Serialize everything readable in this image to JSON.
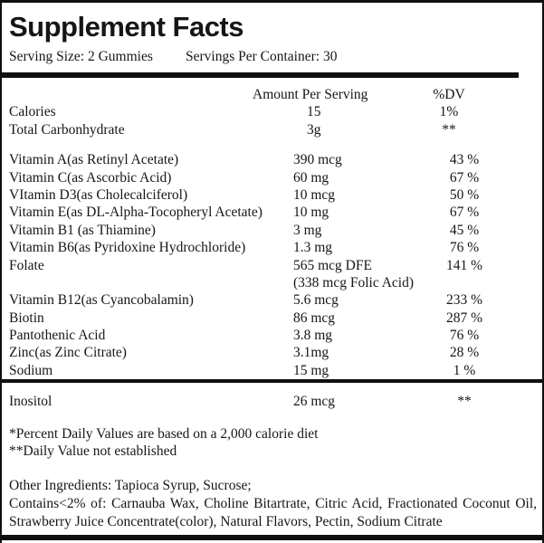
{
  "colors": {
    "ink": "#101010",
    "background": "#ffffff"
  },
  "header": {
    "title": "Supplement Facts",
    "serving_size": "Serving Size: 2 Gummies",
    "servings_per_container": "Servings Per Container: 30"
  },
  "columns": {
    "amount": "Amount Per Serving",
    "dv": "%DV"
  },
  "facts": {
    "top_rows": [
      {
        "name": "Calories",
        "amount": "15",
        "dv": "1%"
      },
      {
        "name": "Total Carbonhydrate",
        "amount": "3g",
        "dv": "**"
      }
    ],
    "nutrients": [
      {
        "name": "Vitamin A(as Retinyl Acetate)",
        "amount": "390 mcg",
        "dv": "43 %"
      },
      {
        "name": "Vitamin C(as Ascorbic Acid)",
        "amount": "60 mg",
        "dv": "67 %"
      },
      {
        "name": "VItamin D3(as Cholecalciferol)",
        "amount": "10 mcg",
        "dv": "50 %"
      },
      {
        "name": "Vitamin E(as DL-Alpha-Tocopheryl Acetate)",
        "amount": "10 mg",
        "dv": "67 %"
      },
      {
        "name": "Vitamin B1 (as Thiamine)",
        "amount": "3 mg",
        "dv": "45 %"
      },
      {
        "name": "Vitamin B6(as Pyridoxine Hydrochloride)",
        "amount": "1.3 mg",
        "dv": "76 %"
      },
      {
        "name": "Folate",
        "amount": "565 mcg DFE",
        "amount_note": "(338 mcg Folic Acid)",
        "dv": "141 %"
      },
      {
        "name": "Vitamin B12(as Cyancobalamin)",
        "amount": "5.6 mcg",
        "dv": "233 %"
      },
      {
        "name": "Biotin",
        "amount": "86 mcg",
        "dv": "287 %"
      },
      {
        "name": "Pantothenic Acid",
        "amount": "3.8 mg",
        "dv": "76 %"
      },
      {
        "name": "Zinc(as Zinc Citrate)",
        "amount": "3.1mg",
        "dv": "28 %"
      },
      {
        "name": "Sodium",
        "amount": "15 mg",
        "dv": "1 %"
      }
    ],
    "extra_row": {
      "name": "Inositol",
      "amount": "26 mcg",
      "dv": "**"
    }
  },
  "footnotes": [
    "*Percent Daily Values are based on a 2,000 calorie diet",
    "**Daily Value not established"
  ],
  "ingredients": {
    "line1": "Other Ingredients: Tapioca Syrup, Sucrose;",
    "line2": "Contains<2% of: Carnauba Wax, Choline Bitartrate, Citric Acid, Fractionated Coconut Oil, Strawberry Juice Concentrate(color), Natural Flavors, Pectin, Sodium Citrate"
  }
}
